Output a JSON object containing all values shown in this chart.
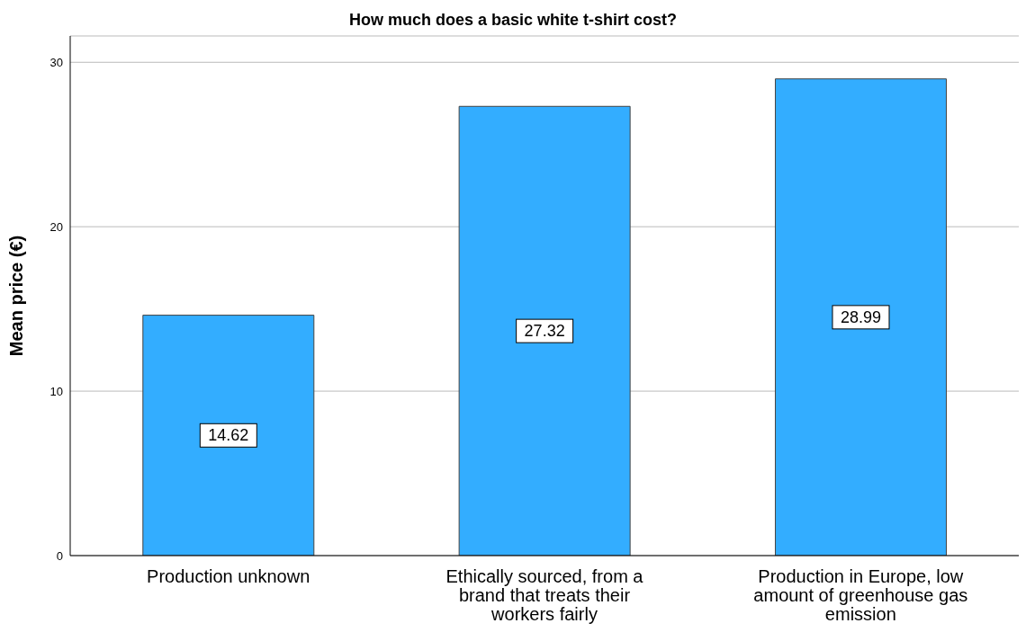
{
  "chart_data": {
    "type": "bar",
    "title": "How much does a basic white t-shirt cost?",
    "ylabel": "Mean price (€)",
    "categories": [
      "Production unknown",
      "Ethically sourced, from a brand that treats their workers fairly",
      "Production in Europe, low amount of greenhouse gas emission"
    ],
    "values": [
      14.62,
      27.32,
      28.99
    ],
    "color": "#33adff",
    "ylim": [
      0,
      31.6
    ],
    "yticks": [
      0,
      10,
      20,
      30
    ],
    "grid": "y",
    "data_labels": true
  }
}
